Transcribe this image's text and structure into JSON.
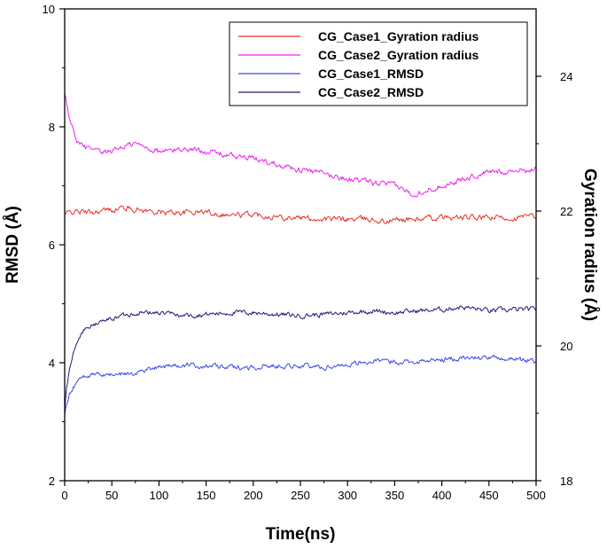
{
  "chart_data": {
    "type": "line",
    "title": "",
    "xlabel": "Time(ns)",
    "ylabel_left": "RMSD (Å)",
    "ylabel_right": "Gyration radius (Å)",
    "xlim": [
      0,
      500
    ],
    "ylim_left": [
      2,
      10
    ],
    "ylim_right": [
      18,
      25
    ],
    "x_ticks": [
      0,
      50,
      100,
      150,
      200,
      250,
      300,
      350,
      400,
      450,
      500
    ],
    "y_left_ticks": [
      2,
      4,
      6,
      8,
      10
    ],
    "y_right_ticks": [
      18,
      20,
      22,
      24
    ],
    "grid": false,
    "legend_position": "top-right",
    "series": [
      {
        "name": "CG_Case1_Gyration radius",
        "axis": "right",
        "color": "#e8302a",
        "x": [
          0,
          10,
          25,
          50,
          60,
          75,
          100,
          125,
          150,
          175,
          200,
          225,
          250,
          275,
          300,
          325,
          340,
          350,
          375,
          400,
          425,
          450,
          475,
          500
        ],
        "y": [
          21.95,
          22.0,
          21.98,
          22.02,
          22.05,
          22.03,
          21.98,
          21.98,
          21.99,
          21.94,
          21.95,
          21.92,
          21.9,
          21.88,
          21.88,
          21.88,
          21.84,
          21.87,
          21.88,
          21.9,
          21.9,
          21.9,
          21.9,
          21.92
        ]
      },
      {
        "name": "CG_Case2_Gyration radius",
        "axis": "right",
        "color": "#ee22ee",
        "x": [
          0,
          2,
          5,
          10,
          15,
          20,
          30,
          40,
          50,
          60,
          75,
          100,
          125,
          150,
          175,
          200,
          225,
          250,
          275,
          300,
          325,
          350,
          370,
          380,
          400,
          425,
          450,
          475,
          500
        ],
        "y": [
          23.7,
          23.6,
          23.4,
          23.15,
          23.0,
          22.95,
          22.9,
          22.85,
          22.9,
          22.95,
          23.0,
          22.88,
          22.92,
          22.9,
          22.82,
          22.78,
          22.7,
          22.62,
          22.55,
          22.48,
          22.42,
          22.38,
          22.25,
          22.3,
          22.38,
          22.48,
          22.58,
          22.6,
          22.62
        ]
      },
      {
        "name": "CG_Case1_RMSD",
        "axis": "left",
        "color": "#3b46e8",
        "x": [
          0,
          2,
          5,
          10,
          15,
          20,
          30,
          40,
          50,
          75,
          100,
          125,
          150,
          175,
          200,
          225,
          250,
          275,
          300,
          325,
          350,
          375,
          400,
          425,
          450,
          475,
          500
        ],
        "y": [
          3.1,
          3.3,
          3.5,
          3.6,
          3.7,
          3.8,
          3.78,
          3.8,
          3.8,
          3.82,
          3.95,
          3.95,
          3.95,
          3.92,
          3.92,
          3.95,
          3.95,
          3.92,
          3.98,
          4.02,
          4.02,
          4.02,
          4.05,
          4.08,
          4.08,
          4.07,
          4.02
        ]
      },
      {
        "name": "CG_Case2_RMSD",
        "axis": "left",
        "color": "#1c1c7a",
        "x": [
          0,
          2,
          5,
          10,
          15,
          20,
          30,
          40,
          50,
          60,
          75,
          100,
          125,
          150,
          175,
          200,
          225,
          250,
          275,
          300,
          325,
          350,
          375,
          400,
          420,
          450,
          475,
          500
        ],
        "y": [
          3.2,
          3.6,
          3.9,
          4.2,
          4.4,
          4.55,
          4.65,
          4.7,
          4.75,
          4.8,
          4.85,
          4.85,
          4.8,
          4.82,
          4.85,
          4.85,
          4.82,
          4.8,
          4.82,
          4.85,
          4.88,
          4.85,
          4.88,
          4.9,
          4.95,
          4.88,
          4.9,
          4.9
        ]
      }
    ]
  }
}
